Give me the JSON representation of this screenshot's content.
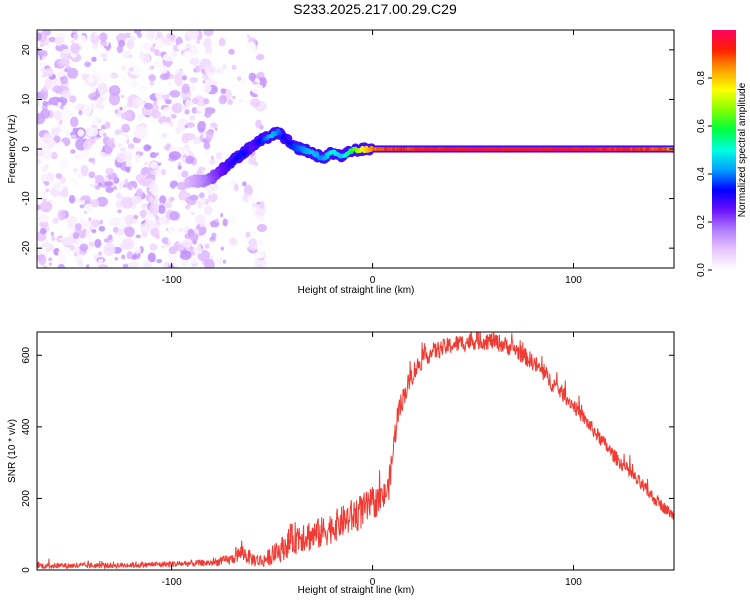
{
  "title": "S233.2025.217.00.29.C29",
  "colors": {
    "snr_line": "#f03a32",
    "colorbar_stops": [
      "#ffffff",
      "#e9c6ff",
      "#b27dff",
      "#6a10ff",
      "#0000ff",
      "#00a0ff",
      "#00ffe0",
      "#00ff40",
      "#80ff00",
      "#ffff00",
      "#ffa000",
      "#ff2000",
      "#ff0060"
    ]
  },
  "chart_data": [
    {
      "type": "heatmap",
      "xlabel": "Height of straight line (km)",
      "ylabel": "Frequency (Hz)",
      "xlim": [
        -167,
        150
      ],
      "ylim": [
        -24,
        24
      ],
      "xticks": [
        -100,
        0,
        100
      ],
      "xtick_labels": [
        "-100",
        "0",
        "100"
      ],
      "yticks": [
        -20,
        -10,
        0,
        10,
        20
      ],
      "ytick_labels": [
        "-20",
        "-10",
        "0",
        "10",
        "20"
      ],
      "colorbar": {
        "label": "Normalized spectral amplitude",
        "range": [
          0,
          1
        ],
        "ticks": [
          0.0,
          0.2,
          0.4,
          0.6,
          0.8
        ],
        "tick_labels": [
          "0.0",
          "0.2",
          "0.4",
          "0.6",
          "0.8"
        ]
      },
      "ridge": {
        "x": [
          -92,
          -85,
          -80,
          -75,
          -70,
          -65,
          -60,
          -55,
          -50,
          -47,
          -43,
          -40,
          -35,
          -30,
          -25,
          -20,
          -15,
          -10,
          -5,
          0,
          10,
          20,
          40,
          60,
          80,
          100,
          120,
          140,
          150
        ],
        "y": [
          -6.5,
          -6.5,
          -5.8,
          -4.2,
          -2.5,
          -1.0,
          0.5,
          1.8,
          2.8,
          3.3,
          2.0,
          0.5,
          0.0,
          -0.8,
          -1.8,
          -0.8,
          -1.5,
          -0.3,
          -0.1,
          0.0,
          0.0,
          0.0,
          0.0,
          0.0,
          0.0,
          0.0,
          0.0,
          0.0,
          0.0
        ],
        "amplitude": [
          0.1,
          0.15,
          0.2,
          0.25,
          0.3,
          0.35,
          0.25,
          0.35,
          0.45,
          0.4,
          0.3,
          0.35,
          0.4,
          0.45,
          0.4,
          0.5,
          0.45,
          0.6,
          0.75,
          0.85,
          0.9,
          0.92,
          0.95,
          0.95,
          0.95,
          0.95,
          0.93,
          0.9,
          0.85
        ]
      },
      "noise_region": {
        "x_range": [
          -167,
          -55
        ],
        "amplitude_range": [
          0.0,
          0.15
        ]
      }
    },
    {
      "type": "line",
      "xlabel": "Height of straight line (km)",
      "ylabel": "SNR (10 * v/v)",
      "xlim": [
        -167,
        150
      ],
      "ylim": [
        0,
        665
      ],
      "xticks": [
        -100,
        0,
        100
      ],
      "xtick_labels": [
        "-100",
        "0",
        "100"
      ],
      "yticks": [
        0,
        200,
        400,
        600
      ],
      "ytick_labels": [
        "0",
        "200",
        "400",
        "600"
      ],
      "series": [
        {
          "x": [
            -167,
            -140,
            -110,
            -80,
            -70,
            -65,
            -60,
            -55,
            -50,
            -45,
            -40,
            -35,
            -30,
            -25,
            -20,
            -15,
            -10,
            -5,
            0,
            5,
            8,
            10,
            12,
            15,
            20,
            25,
            30,
            40,
            50,
            60,
            70,
            80,
            90,
            100,
            110,
            120,
            130,
            140,
            150
          ],
          "y": [
            12,
            12,
            15,
            20,
            30,
            50,
            30,
            25,
            40,
            60,
            85,
            100,
            95,
            105,
            120,
            135,
            150,
            165,
            185,
            200,
            230,
            320,
            420,
            480,
            550,
            590,
            610,
            630,
            640,
            640,
            620,
            580,
            520,
            460,
            390,
            320,
            260,
            200,
            150
          ],
          "noise": [
            8,
            8,
            8,
            10,
            15,
            25,
            20,
            20,
            25,
            35,
            45,
            50,
            45,
            45,
            45,
            45,
            50,
            50,
            45,
            40,
            40,
            40,
            40,
            30,
            30,
            25,
            25,
            25,
            25,
            25,
            25,
            25,
            25,
            20,
            20,
            20,
            20,
            18,
            15
          ]
        }
      ]
    }
  ]
}
